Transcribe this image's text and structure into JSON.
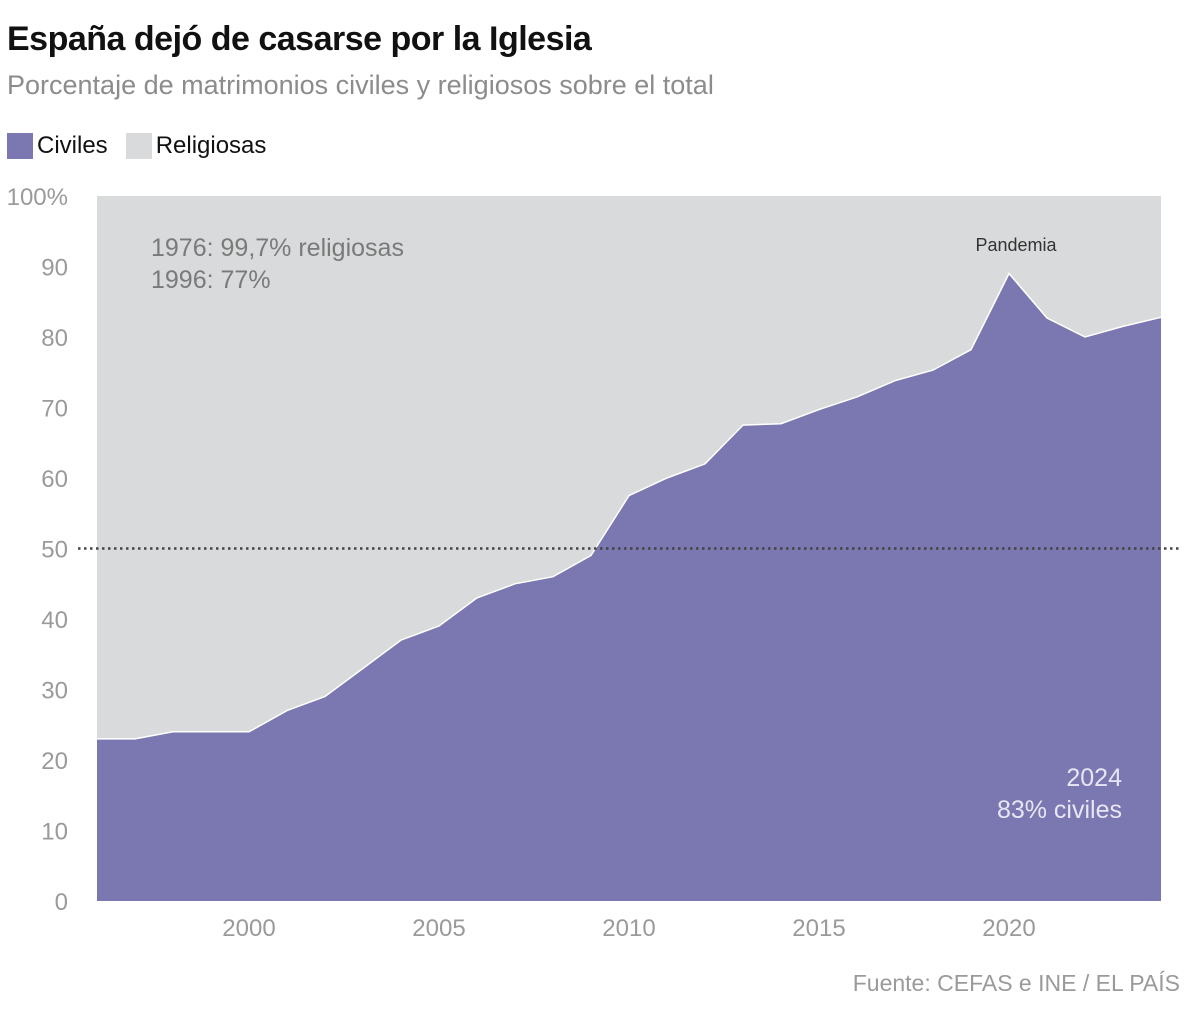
{
  "header": {
    "title": "España dejó de casarse por la Iglesia",
    "subtitle": "Porcentaje de matrimonios civiles y religiosos sobre el total"
  },
  "legend": [
    {
      "label": "Civiles",
      "color": "#7b77b1"
    },
    {
      "label": "Religiosas",
      "color": "#d9dadb"
    }
  ],
  "colors": {
    "civiles": "#7b77b1",
    "religiosas": "#d9dadb",
    "reference_line": "#444444",
    "annotation_gray": "#7a7a7a",
    "annotation_light": "#e8e6f4"
  },
  "chart_data": {
    "type": "area",
    "title": "España dejó de casarse por la Iglesia",
    "subtitle": "Porcentaje de matrimonios civiles y religiosos sobre el total",
    "x": [
      1996,
      1997,
      1998,
      1999,
      2000,
      2001,
      2002,
      2003,
      2004,
      2005,
      2006,
      2007,
      2008,
      2009,
      2010,
      2011,
      2012,
      2013,
      2014,
      2015,
      2016,
      2017,
      2018,
      2019,
      2020,
      2021,
      2022,
      2023,
      2024
    ],
    "series": [
      {
        "name": "Civiles",
        "values": [
          23,
          23,
          24,
          24,
          24,
          27,
          29,
          33,
          37,
          39,
          43,
          45,
          46,
          49,
          57.5,
          60,
          62,
          67.5,
          67.7,
          69.7,
          71.5,
          73.8,
          75.3,
          78.2,
          89,
          82.7,
          80,
          81.5,
          82.8
        ]
      }
    ],
    "stacked_remainder": "Religiosas",
    "xlim": [
      1996,
      2024
    ],
    "ylim": [
      0,
      100
    ],
    "x_ticks": [
      2000,
      2005,
      2010,
      2015,
      2020
    ],
    "y_ticks": [
      0,
      10,
      20,
      30,
      40,
      50,
      60,
      70,
      80,
      90,
      100
    ],
    "y_tick_labels": [
      "0",
      "10",
      "20",
      "30",
      "40",
      "50",
      "60",
      "70",
      "80",
      "90",
      "100%"
    ],
    "reference_line": 50,
    "annotations": [
      {
        "text": "1976: 99,7% religiosas"
      },
      {
        "text": "1996: 77%"
      },
      {
        "text": "Pandemia"
      },
      {
        "text": "2024"
      },
      {
        "text": "83% civiles"
      }
    ],
    "legend_position": "top-left"
  },
  "footer": {
    "source": "Fuente: CEFAS e INE / EL PAÍS"
  }
}
